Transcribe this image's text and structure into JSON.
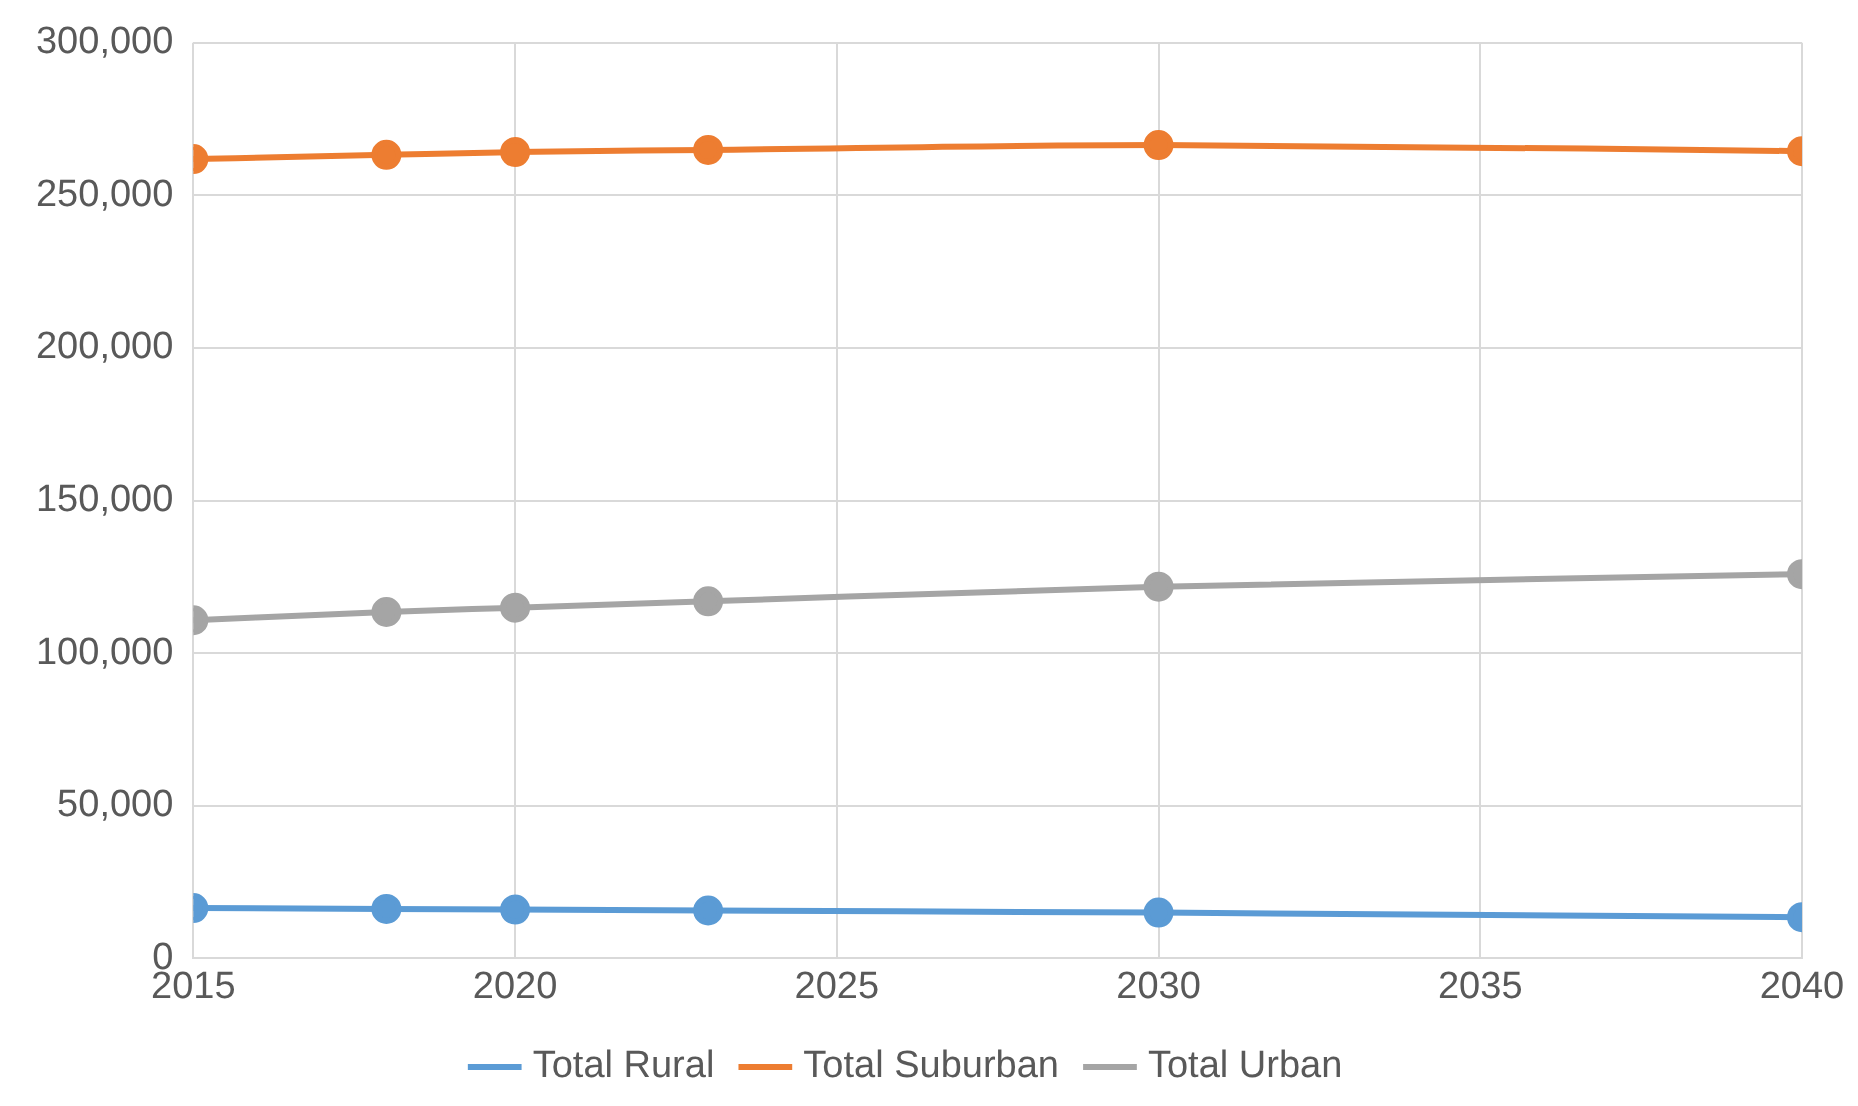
{
  "chart_data": {
    "type": "line",
    "x": [
      2015,
      2018,
      2020,
      2023,
      2030,
      2040
    ],
    "series": [
      {
        "name": "Total Rural",
        "color": "#5b9bd5",
        "values": [
          16500,
          16200,
          16000,
          15700,
          15000,
          13500
        ]
      },
      {
        "name": "Total Suburban",
        "color": "#ed7d31",
        "values": [
          261900,
          263300,
          264200,
          264900,
          266500,
          264500
        ]
      },
      {
        "name": "Total Urban",
        "color": "#a5a5a5",
        "values": [
          110800,
          113500,
          114900,
          117000,
          121800,
          125900
        ]
      }
    ],
    "xlim": [
      2015,
      2040
    ],
    "xticks": [
      2015,
      2020,
      2025,
      2030,
      2035,
      2040
    ],
    "ylim": [
      0,
      300000
    ],
    "yticks": [
      0,
      {
        "value": 50000,
        "label": "50,000"
      },
      {
        "value": 100000,
        "label": "100,000"
      },
      {
        "value": 150000,
        "label": "150,000"
      },
      {
        "value": 200000,
        "label": "200,000"
      },
      {
        "value": 250000,
        "label": "250,000"
      },
      {
        "value": 300000,
        "label": "300,000"
      }
    ],
    "grid": true,
    "legend": "bottom",
    "marker": "circle",
    "line_style": "solid"
  }
}
